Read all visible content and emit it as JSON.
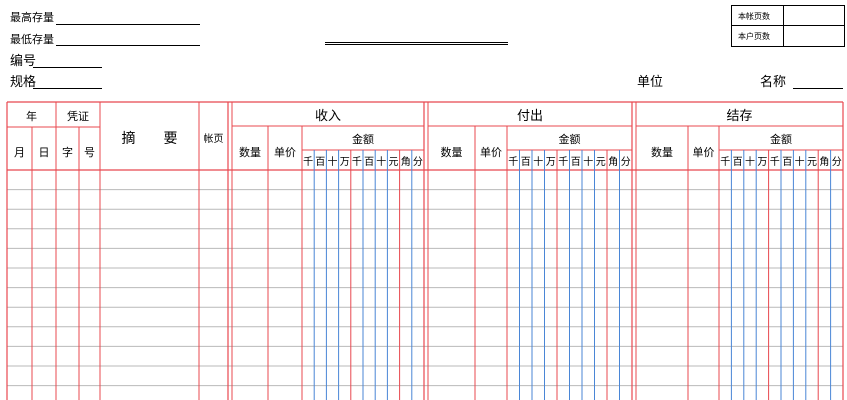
{
  "header": {
    "max_stock_label": "最高存量",
    "min_stock_label": "最低存量",
    "code_label": "编号",
    "spec_label": "规格",
    "unit_label": "单位",
    "name_label": "名称"
  },
  "page_box": {
    "this_account_pages": "本帐页数",
    "this_user_pages": "本户页数"
  },
  "table": {
    "year": "年",
    "voucher": "凭证",
    "month": "月",
    "day": "日",
    "word": "字",
    "number": "号",
    "summary": "摘　　要",
    "ledger_page": "帐页",
    "income": "收入",
    "payout": "付出",
    "balance": "结存",
    "quantity": "数量",
    "unit_price": "单价",
    "amount": "金额",
    "digits": [
      "千",
      "百",
      "十",
      "万",
      "千",
      "百",
      "十",
      "元",
      "角",
      "分"
    ]
  },
  "colors": {
    "red_rule": "#e8484f",
    "blue_rule": "#4a86d6",
    "gray_rule": "#b9b9b9"
  }
}
